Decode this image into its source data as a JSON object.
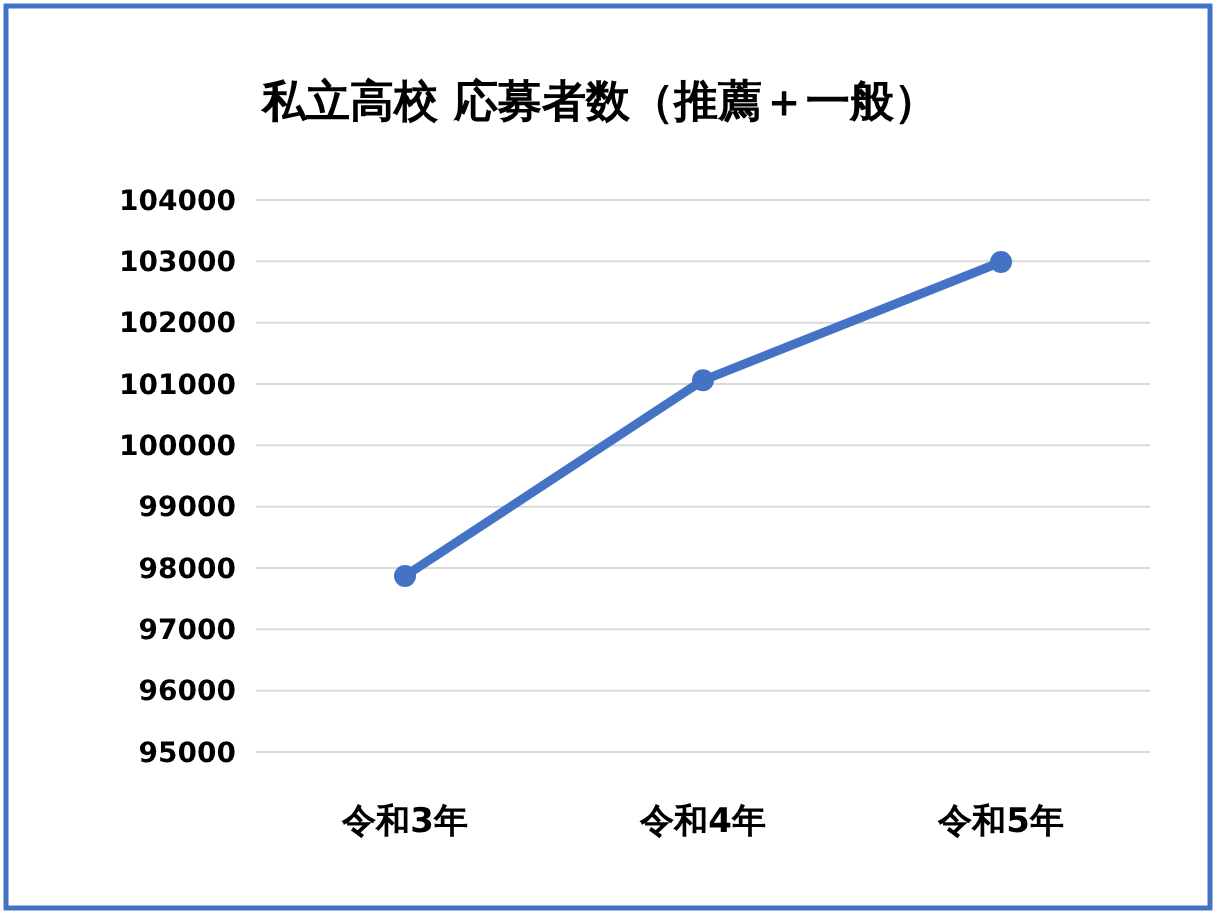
{
  "chart_data": {
    "type": "line",
    "title": "私立高校 応募者数（推薦＋一般）",
    "categories": [
      "令和3年",
      "令和4年",
      "令和5年"
    ],
    "series": [
      {
        "color": "#4472c4",
        "values": [
          97870,
          101060,
          102990
        ]
      }
    ],
    "ylim": [
      95000,
      104000
    ],
    "yticks": [
      95000,
      96000,
      97000,
      98000,
      99000,
      100000,
      101000,
      102000,
      103000,
      104000
    ],
    "grid": "y",
    "marker": "circle",
    "line_style": "solid"
  }
}
